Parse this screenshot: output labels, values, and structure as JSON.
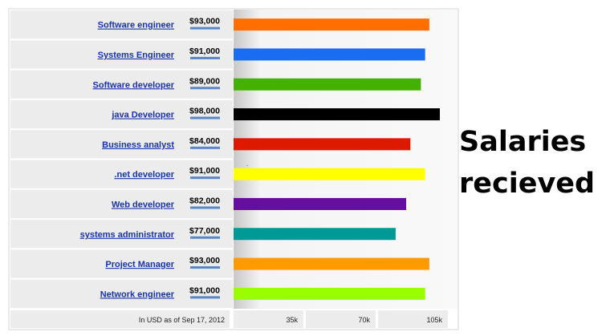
{
  "chart_data": {
    "type": "bar",
    "orientation": "horizontal",
    "title": "Salaries recieved",
    "categories": [
      "Software engineer",
      "Systems Engineer",
      "Software developer",
      "java Developer",
      "Business analyst",
      ".net developer",
      "Web developer",
      "systems administrator",
      "Project Manager",
      "Network engineer"
    ],
    "value_labels": [
      "$93,000",
      "$91,000",
      "$89,000",
      "$98,000",
      "$84,000",
      "$91,000",
      "$82,000",
      "$77,000",
      "$93,000",
      "$91,000"
    ],
    "values": [
      93000,
      91000,
      89000,
      98000,
      84000,
      91000,
      82000,
      77000,
      93000,
      91000
    ],
    "colors": [
      "#ff6e00",
      "#1a6cf0",
      "#44b000",
      "#000000",
      "#dd1a00",
      "#ffff00",
      "#660e9e",
      "#009a96",
      "#ff9a00",
      "#99ff00"
    ],
    "xlim": [
      0,
      105000
    ],
    "xticks": [
      35000,
      70000,
      105000
    ],
    "xtick_labels": [
      "35k",
      "70k",
      "105k"
    ],
    "footnote": "In USD as of Sep 17, 2012",
    "grid": false,
    "legend": "none"
  }
}
